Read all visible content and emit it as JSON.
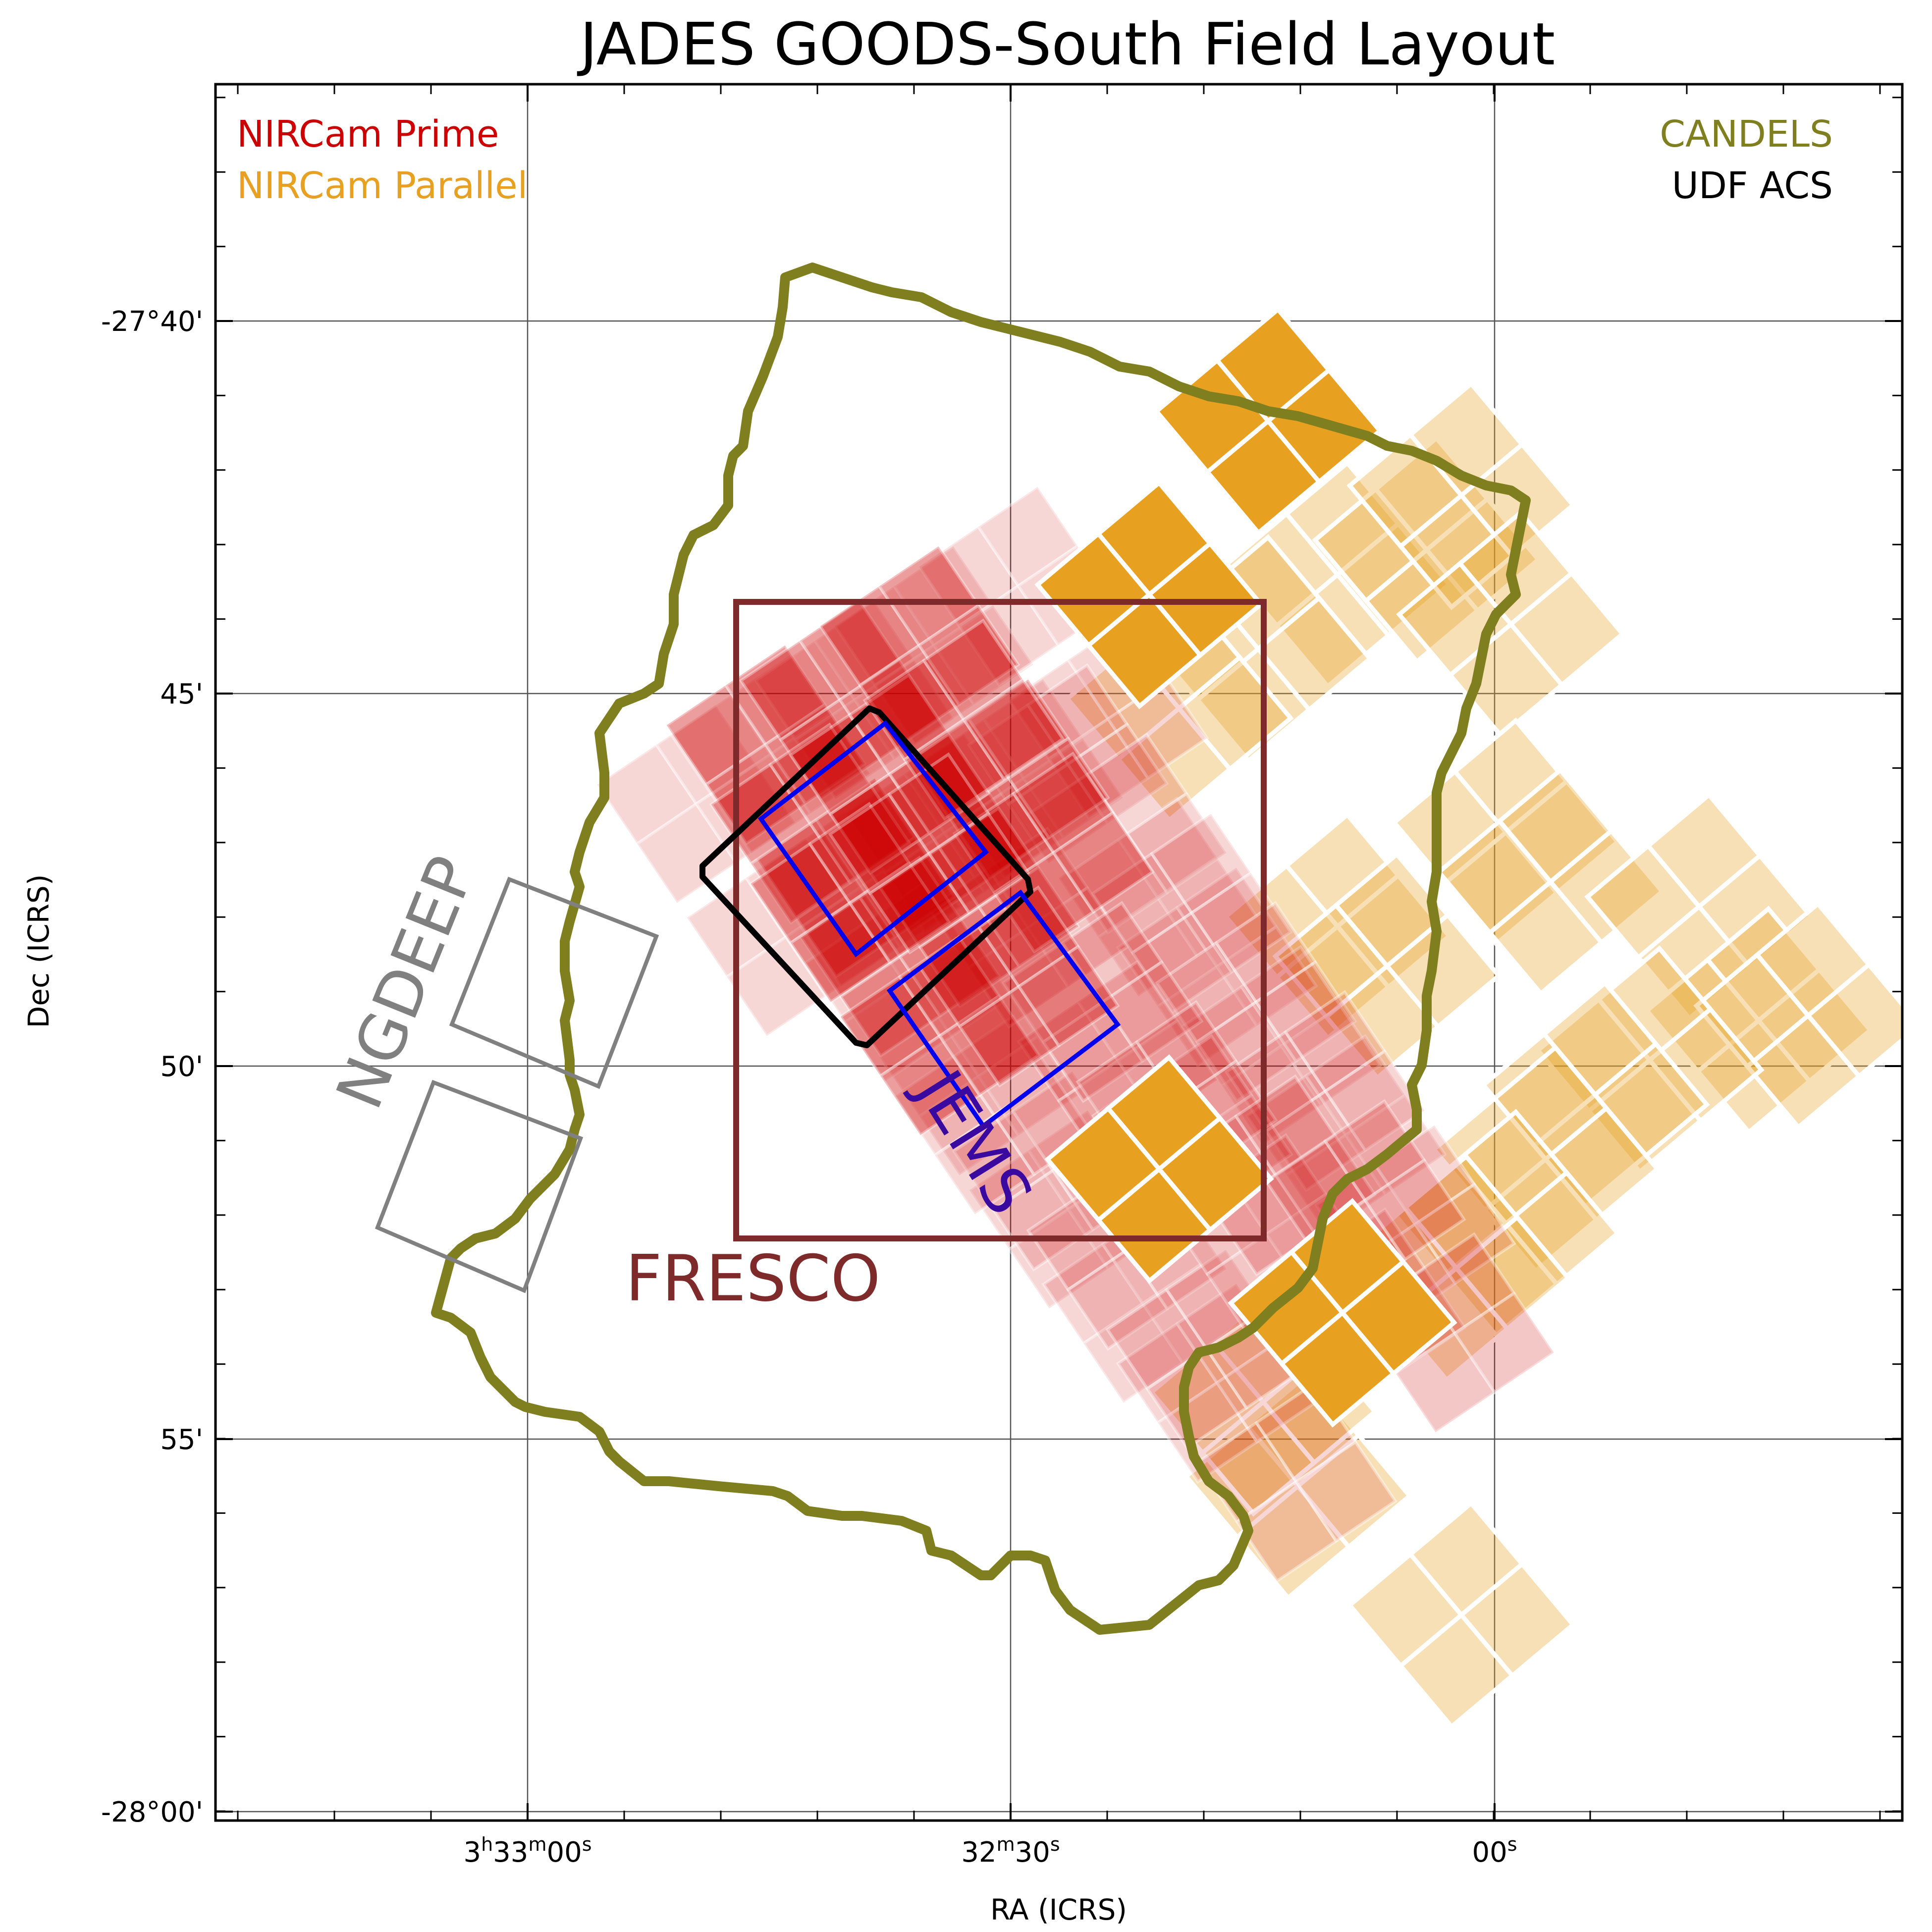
{
  "title": "JADES GOODS-South Field Layout",
  "axes": {
    "xlabel": "RA (ICRS)",
    "ylabel": "Dec (ICRS)",
    "xticks": [
      {
        "label": "3h33m00s"
      },
      {
        "label": "32m30s"
      },
      {
        "label": "00s"
      }
    ],
    "xtick_parts": [
      [
        {
          "t": "3"
        },
        {
          "t": "h",
          "sup": true
        },
        {
          "t": "33"
        },
        {
          "t": "m",
          "sup": true
        },
        {
          "t": "00"
        },
        {
          "t": "s",
          "sup": true
        }
      ],
      [
        {
          "t": "32"
        },
        {
          "t": "m",
          "sup": true
        },
        {
          "t": "30"
        },
        {
          "t": "s",
          "sup": true
        }
      ],
      [
        {
          "t": "00"
        },
        {
          "t": "s",
          "sup": true
        }
      ]
    ],
    "yticks": [
      "-27°40'",
      "45'",
      "50'",
      "55'",
      "-28°00'"
    ]
  },
  "legend": {
    "left": [
      {
        "label": "NIRCam Prime",
        "color": "#cc0000"
      },
      {
        "label": "NIRCam Parallel",
        "color": "#e8a020"
      }
    ],
    "right": [
      {
        "label": "CANDELS",
        "color": "#7f7f20"
      },
      {
        "label": "UDF ACS",
        "color": "#000000"
      }
    ]
  },
  "labels": {
    "ngdeep": {
      "text": "NGDEEP",
      "color": "#808080"
    },
    "jems": {
      "text": "JEMS",
      "color": "#3a0aa0"
    },
    "fresco": {
      "text": "FRESCO",
      "color": "#7f2a2a"
    }
  },
  "colors": {
    "candels": "#7f7f20",
    "prime": "#cc0000",
    "parallel": "#e8a020",
    "fresco": "#7f2a2a",
    "jems": "#0000ee",
    "udf": "#000000",
    "ngdeep": "#808080"
  }
}
